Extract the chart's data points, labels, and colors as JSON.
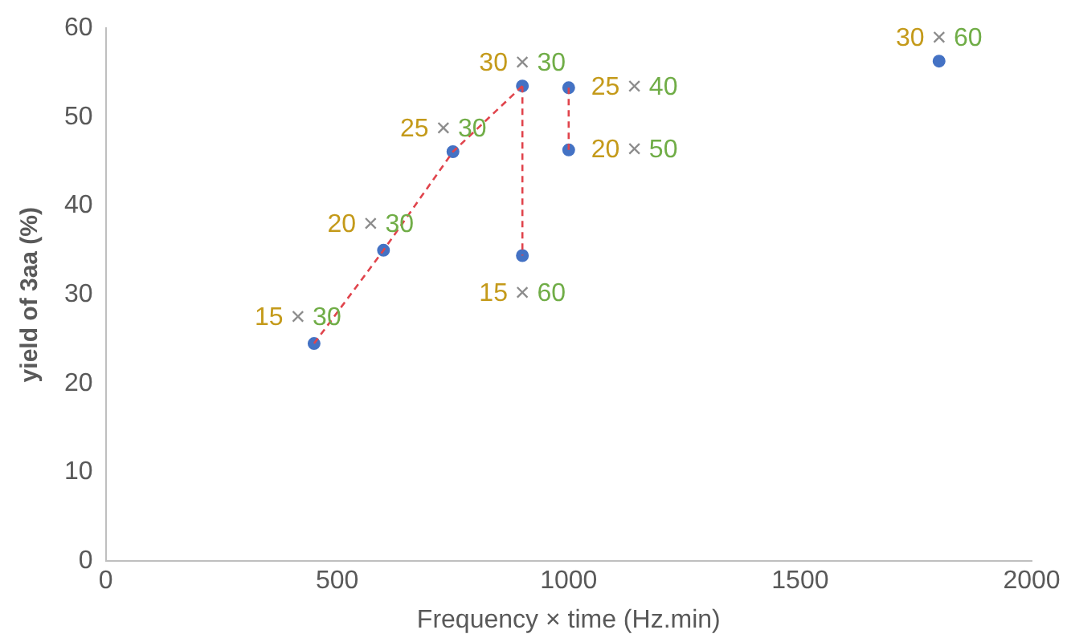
{
  "chart_data": {
    "type": "scatter",
    "xlabel": "Frequency × time (Hz.min)",
    "ylabel": "yield of 3aa (%)",
    "xlim": [
      0,
      2000
    ],
    "xticks": [
      0,
      500,
      1000,
      1500,
      2000
    ],
    "ylim": [
      0,
      60
    ],
    "yticks": [
      0,
      10,
      20,
      30,
      40,
      50,
      60
    ],
    "grid": false,
    "legend": false,
    "series": [
      {
        "type": "line",
        "color": "#e0444c",
        "line_style": "dashed",
        "marker": "none",
        "x": [
          450,
          600,
          750,
          900
        ],
        "values": [
          24.5,
          35,
          46.1,
          53.5
        ]
      },
      {
        "type": "line",
        "color": "#e0444c",
        "line_style": "dashed",
        "marker": "none",
        "x": [
          900,
          900
        ],
        "values": [
          53.5,
          34.4
        ]
      },
      {
        "type": "line",
        "color": "#e0444c",
        "line_style": "dashed",
        "marker": "none",
        "x": [
          1000,
          1000
        ],
        "values": [
          53.3,
          46.3
        ]
      },
      {
        "color": "#4472c4",
        "marker": "circle",
        "x": [
          450,
          600,
          750,
          900,
          900,
          1000,
          1000,
          1800
        ],
        "values": [
          24.5,
          35,
          46.1,
          53.5,
          34.4,
          53.3,
          46.3,
          56.3
        ]
      }
    ],
    "annotations": [
      {
        "text": "15 × 30",
        "x": 450,
        "y": 24.5
      },
      {
        "text": "20 × 30",
        "x": 600,
        "y": 35
      },
      {
        "text": "25 × 30",
        "x": 750,
        "y": 46.1
      },
      {
        "text": "30 × 30",
        "x": 900,
        "y": 53.5
      },
      {
        "text": "15 × 60",
        "x": 900,
        "y": 34.4
      },
      {
        "text": "25 × 40",
        "x": 1000,
        "y": 53.3
      },
      {
        "text": "20 × 50",
        "x": 1000,
        "y": 46.3
      },
      {
        "text": "30 × 60",
        "x": 1800,
        "y": 56.3
      }
    ]
  }
}
